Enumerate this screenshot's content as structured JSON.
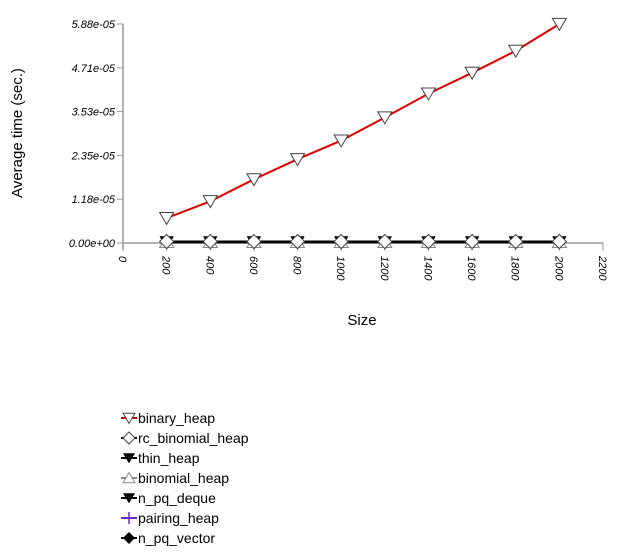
{
  "chart_data": {
    "type": "line",
    "title": "",
    "xlabel": "Size",
    "ylabel": "Average time (sec.)",
    "xlim": [
      0,
      2200
    ],
    "ylim": [
      0,
      5.88e-05
    ],
    "xticks": [
      "0",
      "200",
      "400",
      "600",
      "800",
      "1000",
      "1200",
      "1400",
      "1600",
      "1800",
      "2000",
      "2200"
    ],
    "yticks": [
      "0.00e+00",
      "1.18e-05",
      "2.35e-05",
      "3.53e-05",
      "4.71e-05",
      "5.88e-05"
    ],
    "grid": false,
    "legend_position": "bottom-left",
    "x": [
      200,
      400,
      600,
      800,
      1000,
      1200,
      1400,
      1600,
      1800,
      2000
    ],
    "series": [
      {
        "name": "binary_heap",
        "color": "#dd0000",
        "marker": "triangle-down-open",
        "values": [
          6.7e-06,
          1.12e-05,
          1.71e-05,
          2.25e-05,
          2.75e-05,
          3.37e-05,
          4.01e-05,
          4.57e-05,
          5.16e-05,
          5.88e-05
        ]
      },
      {
        "name": "rc_binomial_heap",
        "color": "#000000",
        "marker": "diamond-open",
        "values": [
          4e-07,
          4e-07,
          4e-07,
          4e-07,
          4e-07,
          4e-07,
          4e-07,
          4e-07,
          4e-07,
          4e-07
        ]
      },
      {
        "name": "thin_heap",
        "color": "#000000",
        "marker": "triangle-down-filled",
        "values": [
          3e-07,
          3e-07,
          3e-07,
          3e-07,
          3e-07,
          3e-07,
          3e-07,
          3e-07,
          3e-07,
          3e-07
        ]
      },
      {
        "name": "binomial_heap",
        "color": "#888888",
        "marker": "triangle-up-open",
        "values": [
          3e-07,
          3e-07,
          3e-07,
          3e-07,
          3e-07,
          3e-07,
          3e-07,
          3e-07,
          3e-07,
          3e-07
        ]
      },
      {
        "name": "n_pq_deque",
        "color": "#000000",
        "marker": "triangle-down-filled",
        "values": [
          2e-07,
          2e-07,
          2e-07,
          2e-07,
          2e-07,
          2e-07,
          2e-07,
          2e-07,
          2e-07,
          2e-07
        ]
      },
      {
        "name": "pairing_heap",
        "color": "#6a2ccc",
        "marker": "plus",
        "values": [
          3e-07,
          3e-07,
          3e-07,
          3e-07,
          3e-07,
          3e-07,
          3e-07,
          3e-07,
          3e-07,
          3e-07
        ]
      },
      {
        "name": "n_pq_vector",
        "color": "#000000",
        "marker": "diamond-filled",
        "values": [
          2e-07,
          2e-07,
          2e-07,
          2e-07,
          2e-07,
          2e-07,
          2e-07,
          2e-07,
          2e-07,
          2e-07
        ]
      }
    ]
  }
}
